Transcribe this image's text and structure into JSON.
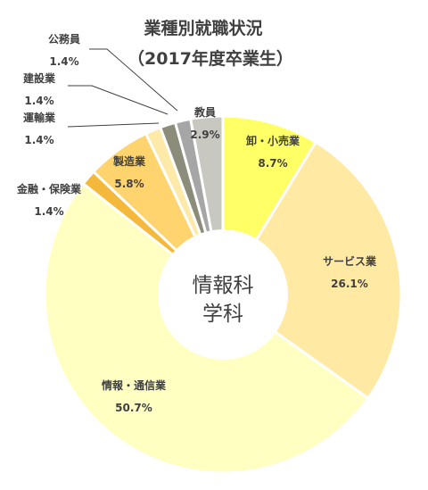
{
  "chart_data": {
    "type": "pie",
    "title": "業種別就職状況",
    "subtitle": "（2017年度卒業生）",
    "center_label": [
      "情報科",
      "学科"
    ],
    "slices": [
      {
        "name": "卸・小売業",
        "value": 8.7,
        "label": "8.7%",
        "color": "#ffff66"
      },
      {
        "name": "サービス業",
        "value": 26.1,
        "label": "26.1%",
        "color": "#ffe9a3"
      },
      {
        "name": "情報・通信業",
        "value": 50.7,
        "label": "50.7%",
        "color": "#ffffc2"
      },
      {
        "name": "金融・保険業",
        "value": 1.4,
        "label": "1.4%",
        "color": "#f4b93a"
      },
      {
        "name": "製造業",
        "value": 5.8,
        "label": "5.8%",
        "color": "#ffd36e"
      },
      {
        "name": "運輸業",
        "value": 1.4,
        "label": "1.4%",
        "color": "#fde9a8"
      },
      {
        "name": "建設業",
        "value": 1.4,
        "label": "1.4%",
        "color": "#8c8c7a"
      },
      {
        "name": "公務員",
        "value": 1.4,
        "label": "1.4%",
        "color": "#a6a6a6"
      },
      {
        "name": "教員",
        "value": 2.9,
        "label": "2.9%",
        "color": "#c8c8c0"
      }
    ]
  }
}
